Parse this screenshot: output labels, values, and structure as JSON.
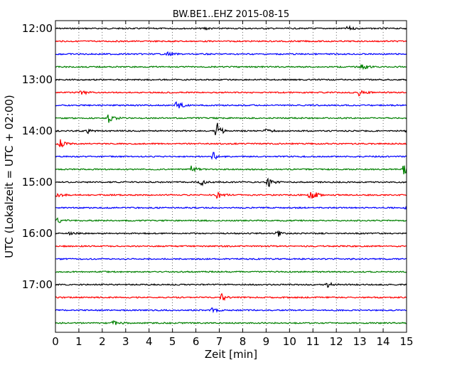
{
  "chart_data": {
    "type": "line",
    "title": "BW.BE1..EHZ 2015-08-15",
    "xlabel": "Zeit  [min]",
    "ylabel": "UTC (Lokalzeit = UTC + 02:00)",
    "x_ticks": [
      "0",
      "1",
      "2",
      "3",
      "4",
      "5",
      "6",
      "7",
      "8",
      "9",
      "10",
      "11",
      "12",
      "13",
      "14",
      "15"
    ],
    "y_ticks": [
      "12:00",
      "13:00",
      "14:00",
      "15:00",
      "16:00",
      "17:00"
    ],
    "xlim": [
      0,
      15
    ],
    "ylim_utc": [
      "12:00",
      "18:00"
    ],
    "grid": "vertical dotted lines at each minute",
    "trace_interval_min": 15,
    "trace_colors": [
      "#000000",
      "#ff0000",
      "#0000ff",
      "#008000"
    ],
    "series": [
      {
        "start": "12:00",
        "events": [
          {
            "t": 6.4,
            "amp": 0.15
          },
          {
            "t": 12.5,
            "amp": 0.25
          }
        ]
      },
      {
        "start": "12:15",
        "events": []
      },
      {
        "start": "12:30",
        "events": [
          {
            "t": 4.8,
            "amp": 0.2
          }
        ]
      },
      {
        "start": "12:45",
        "events": [
          {
            "t": 13.1,
            "amp": 0.35
          }
        ]
      },
      {
        "start": "13:00",
        "events": []
      },
      {
        "start": "13:15",
        "events": [
          {
            "t": 1.1,
            "amp": 0.4
          },
          {
            "t": 13.0,
            "amp": 0.5
          }
        ]
      },
      {
        "start": "13:30",
        "events": [
          {
            "t": 5.2,
            "amp": 0.55
          }
        ]
      },
      {
        "start": "13:45",
        "events": [
          {
            "t": 2.3,
            "amp": 0.6
          }
        ]
      },
      {
        "start": "14:00",
        "events": [
          {
            "t": 1.4,
            "amp": 0.25
          },
          {
            "t": 6.9,
            "amp": 1.0
          },
          {
            "t": 9.0,
            "amp": 0.35
          },
          {
            "t": 15.0,
            "amp": 0.2
          }
        ]
      },
      {
        "start": "14:15",
        "events": [
          {
            "t": 0.2,
            "amp": 0.5
          }
        ]
      },
      {
        "start": "14:30",
        "events": [
          {
            "t": 6.7,
            "amp": 0.7
          }
        ]
      },
      {
        "start": "14:45",
        "events": [
          {
            "t": 5.8,
            "amp": 0.5
          },
          {
            "t": 14.9,
            "amp": 0.7
          }
        ]
      },
      {
        "start": "15:00",
        "events": [
          {
            "t": 6.2,
            "amp": 0.45
          },
          {
            "t": 9.1,
            "amp": 0.55
          }
        ]
      },
      {
        "start": "15:15",
        "events": [
          {
            "t": 0.1,
            "amp": 0.3
          },
          {
            "t": 6.9,
            "amp": 0.5
          },
          {
            "t": 10.9,
            "amp": 1.0
          }
        ]
      },
      {
        "start": "15:30",
        "events": [
          {
            "t": 15.0,
            "amp": 0.15
          }
        ]
      },
      {
        "start": "15:45",
        "events": [
          {
            "t": 0.1,
            "amp": 0.3
          }
        ]
      },
      {
        "start": "16:00",
        "events": [
          {
            "t": 0.6,
            "amp": 0.15
          },
          {
            "t": 9.5,
            "amp": 0.4
          }
        ]
      },
      {
        "start": "16:15",
        "events": []
      },
      {
        "start": "16:30",
        "events": []
      },
      {
        "start": "16:45",
        "events": []
      },
      {
        "start": "17:00",
        "events": [
          {
            "t": 11.6,
            "amp": 0.35
          }
        ]
      },
      {
        "start": "17:15",
        "events": [
          {
            "t": 7.1,
            "amp": 0.4
          }
        ]
      },
      {
        "start": "17:30",
        "events": [
          {
            "t": 6.7,
            "amp": 0.3
          }
        ]
      },
      {
        "start": "17:45",
        "events": [
          {
            "t": 2.5,
            "amp": 0.4
          }
        ]
      }
    ]
  }
}
